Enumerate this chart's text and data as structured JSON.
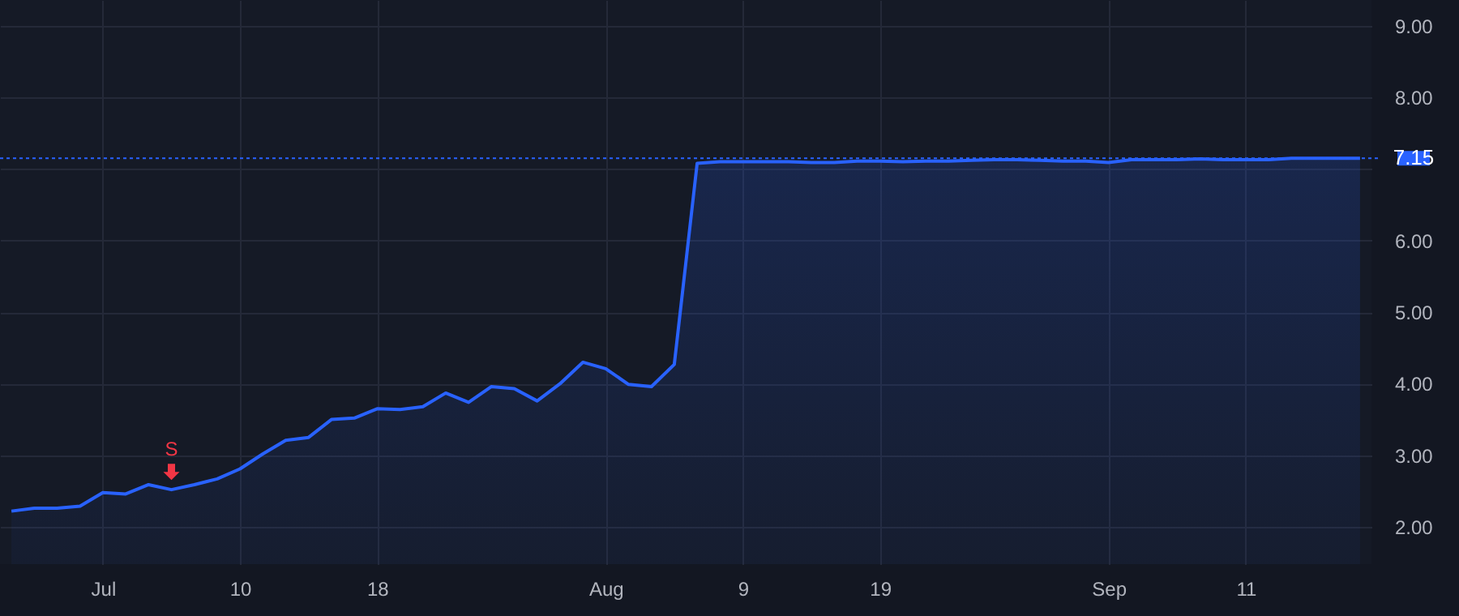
{
  "chart_data": {
    "type": "area",
    "categories": [
      null,
      null,
      null,
      null,
      "Jul",
      null,
      null,
      null,
      null,
      null,
      "10",
      null,
      null,
      null,
      null,
      null,
      "18",
      null,
      null,
      null,
      null,
      null,
      null,
      null,
      null,
      null,
      "Aug",
      null,
      null,
      null,
      null,
      null,
      "9",
      null,
      null,
      null,
      null,
      null,
      "19",
      null,
      null,
      null,
      null,
      null,
      null,
      null,
      null,
      null,
      "Sep",
      null,
      null,
      null,
      null,
      null,
      "11",
      null,
      null,
      null,
      null,
      null
    ],
    "series": [
      {
        "color": "#2962ff",
        "values": [
          2.22,
          2.26,
          2.26,
          2.29,
          2.48,
          2.46,
          2.59,
          2.52,
          2.59,
          2.67,
          2.81,
          3.02,
          3.21,
          3.25,
          3.5,
          3.52,
          3.65,
          3.64,
          3.68,
          3.87,
          3.74,
          3.96,
          3.93,
          3.76,
          4.0,
          4.3,
          4.21,
          3.99,
          3.96,
          4.27,
          7.08,
          7.1,
          7.1,
          7.1,
          7.1,
          7.09,
          7.09,
          7.11,
          7.11,
          7.1,
          7.11,
          7.11,
          7.12,
          7.13,
          7.13,
          7.12,
          7.11,
          7.11,
          7.09,
          7.13,
          7.13,
          7.13,
          7.14,
          7.13,
          7.13,
          7.13,
          7.15,
          7.15,
          7.15,
          7.15
        ]
      }
    ],
    "ylim": [
      1.48,
      9.36
    ],
    "yticks": [
      {
        "value": 2,
        "label": "2.00"
      },
      {
        "value": 3,
        "label": "3.00"
      },
      {
        "value": 4,
        "label": "4.00"
      },
      {
        "value": 5,
        "label": "5.00"
      },
      {
        "value": 6,
        "label": "6.00"
      },
      {
        "value": 7,
        "label": null
      },
      {
        "value": 8,
        "label": "8.00"
      },
      {
        "value": 9,
        "label": "9.00"
      }
    ],
    "grid": true,
    "ref_lines": [
      {
        "axis": "y",
        "value": 7.15,
        "label": "7.15",
        "color": "#2962ff",
        "line_style": "dotted"
      }
    ],
    "annotations": [
      {
        "text": "S",
        "y": 2.52
      }
    ]
  }
}
